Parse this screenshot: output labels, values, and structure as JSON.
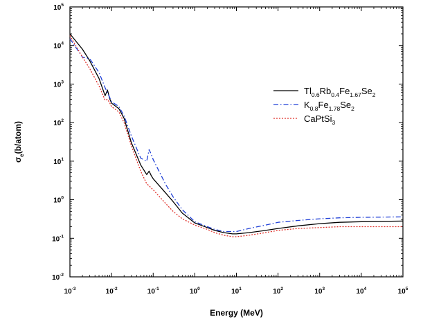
{
  "chart_data": {
    "type": "line",
    "xlabel": "Energy (MeV)",
    "ylabel": {
      "main": "σ",
      "sub": "e",
      "rest": "(b/atom)"
    },
    "xscale": "log",
    "yscale": "log",
    "xlim": [
      0.001,
      100000
    ],
    "ylim": [
      0.01,
      100000
    ],
    "x_ticks": [
      {
        "value": 0.001,
        "base": "10",
        "exp": "-3"
      },
      {
        "value": 0.01,
        "base": "10",
        "exp": "-2"
      },
      {
        "value": 0.1,
        "base": "10",
        "exp": "-1"
      },
      {
        "value": 1,
        "base": "10",
        "exp": "0"
      },
      {
        "value": 10,
        "base": "10",
        "exp": "1"
      },
      {
        "value": 100,
        "base": "10",
        "exp": "2"
      },
      {
        "value": 1000,
        "base": "10",
        "exp": "3"
      },
      {
        "value": 10000,
        "base": "10",
        "exp": "4"
      },
      {
        "value": 100000,
        "base": "10",
        "exp": "5"
      }
    ],
    "y_ticks": [
      {
        "value": 0.01,
        "base": "10",
        "exp": "-2"
      },
      {
        "value": 0.1,
        "base": "10",
        "exp": "-1"
      },
      {
        "value": 1,
        "base": "10",
        "exp": "0"
      },
      {
        "value": 10,
        "base": "10",
        "exp": "1"
      },
      {
        "value": 100,
        "base": "10",
        "exp": "2"
      },
      {
        "value": 1000,
        "base": "10",
        "exp": "3"
      },
      {
        "value": 10000,
        "base": "10",
        "exp": "4"
      },
      {
        "value": 100000,
        "base": "10",
        "exp": "5"
      }
    ],
    "grid": false,
    "legend_position": "right-middle",
    "series": [
      {
        "name": "Tl0.6Rb0.4Fe1.67Se2",
        "label_parts": [
          {
            "t": "Tl",
            "sub": false
          },
          {
            "t": "0.6",
            "sub": true
          },
          {
            "t": "Rb",
            "sub": false
          },
          {
            "t": "0.4",
            "sub": true
          },
          {
            "t": "Fe",
            "sub": false
          },
          {
            "t": "1.67",
            "sub": true
          },
          {
            "t": "Se",
            "sub": false
          },
          {
            "t": "2",
            "sub": true
          }
        ],
        "color": "#000000",
        "dash": "",
        "x": [
          0.001,
          0.002,
          0.003,
          0.005,
          0.007,
          0.008,
          0.009,
          0.01,
          0.015,
          0.02,
          0.03,
          0.05,
          0.07,
          0.08,
          0.09,
          0.1,
          0.2,
          0.3,
          0.5,
          1,
          2,
          3,
          5,
          8,
          10,
          20,
          50,
          100,
          300,
          1000,
          3000,
          10000,
          100000
        ],
        "y": [
          20000,
          8000,
          4000,
          1400,
          500,
          700,
          420,
          320,
          230,
          130,
          30,
          8,
          4.5,
          5.5,
          4.2,
          3.5,
          1.5,
          0.9,
          0.45,
          0.25,
          0.19,
          0.16,
          0.14,
          0.13,
          0.13,
          0.14,
          0.16,
          0.18,
          0.21,
          0.24,
          0.26,
          0.27,
          0.28
        ]
      },
      {
        "name": "K0.8Fe1.78Se2",
        "label_parts": [
          {
            "t": "K",
            "sub": false
          },
          {
            "t": "0.8",
            "sub": true
          },
          {
            "t": "Fe",
            "sub": false
          },
          {
            "t": "1.78",
            "sub": true
          },
          {
            "t": "Se",
            "sub": false
          },
          {
            "t": "2",
            "sub": true
          }
        ],
        "color": "#1f3fd6",
        "dash": "7,3,1.5,3",
        "x": [
          0.001,
          0.002,
          0.003,
          0.005,
          0.007,
          0.008,
          0.009,
          0.01,
          0.015,
          0.02,
          0.03,
          0.05,
          0.07,
          0.08,
          0.09,
          0.1,
          0.2,
          0.3,
          0.5,
          1,
          2,
          3,
          5,
          8,
          10,
          20,
          50,
          100,
          300,
          1000,
          3000,
          10000,
          100000
        ],
        "y": [
          15000,
          5000,
          4500,
          2000,
          800,
          600,
          450,
          350,
          260,
          150,
          45,
          12,
          10,
          20,
          15,
          11,
          2.5,
          1.2,
          0.55,
          0.27,
          0.2,
          0.17,
          0.15,
          0.15,
          0.15,
          0.18,
          0.22,
          0.26,
          0.29,
          0.32,
          0.34,
          0.35,
          0.36
        ]
      },
      {
        "name": "CaPtSi3",
        "label_parts": [
          {
            "t": "CaPtSi",
            "sub": false
          },
          {
            "t": "3",
            "sub": true
          }
        ],
        "color": "#e0302a",
        "dash": "2,2",
        "x": [
          0.001,
          0.002,
          0.003,
          0.005,
          0.007,
          0.008,
          0.009,
          0.01,
          0.015,
          0.02,
          0.03,
          0.05,
          0.07,
          0.08,
          0.09,
          0.1,
          0.2,
          0.3,
          0.5,
          1,
          2,
          3,
          5,
          8,
          10,
          20,
          50,
          100,
          300,
          1000,
          3000,
          10000,
          100000
        ],
        "y": [
          18000,
          5000,
          2500,
          900,
          380,
          400,
          330,
          260,
          190,
          100,
          25,
          5.5,
          2.6,
          2.3,
          2.0,
          1.8,
          0.8,
          0.5,
          0.32,
          0.22,
          0.17,
          0.14,
          0.12,
          0.11,
          0.11,
          0.12,
          0.14,
          0.16,
          0.18,
          0.19,
          0.2,
          0.2,
          0.2
        ]
      }
    ]
  }
}
